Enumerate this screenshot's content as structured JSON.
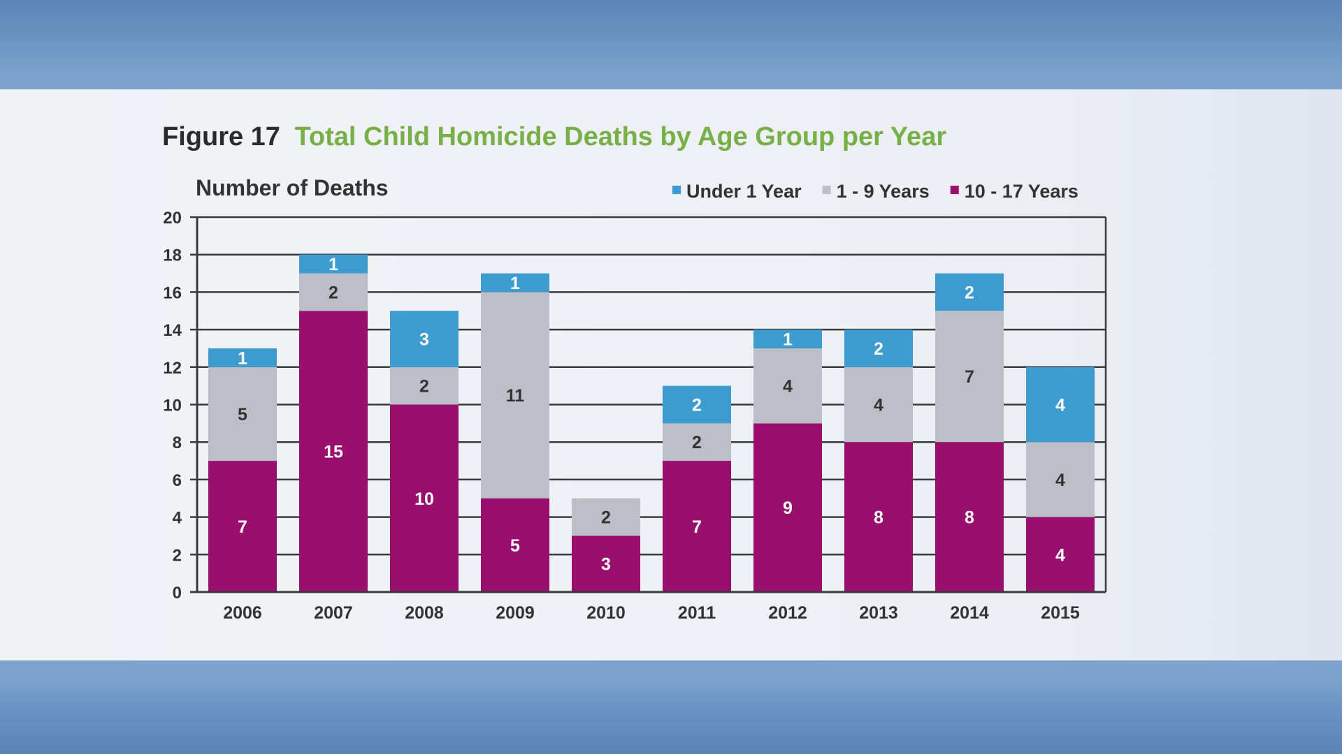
{
  "figure": {
    "number": "Figure 17",
    "title": "Total Child Homicide Deaths by Age Group per Year"
  },
  "chart_data": {
    "type": "bar",
    "stacked": true,
    "ylabel": "Number of Deaths",
    "xlabel": "",
    "ylim": [
      0,
      20
    ],
    "yticks": [
      0,
      2,
      4,
      6,
      8,
      10,
      12,
      14,
      16,
      18,
      20
    ],
    "grid": true,
    "legend_position": "top-right",
    "categories": [
      "2006",
      "2007",
      "2008",
      "2009",
      "2010",
      "2011",
      "2012",
      "2013",
      "2014",
      "2015"
    ],
    "series": [
      {
        "name": "10 - 17 Years",
        "color": "#990f6e",
        "label_color": "#ffffff",
        "values": [
          7,
          15,
          10,
          5,
          3,
          7,
          9,
          8,
          8,
          4
        ]
      },
      {
        "name": "1 - 9 Years",
        "color": "#bcbfc7",
        "label_color": "#333333",
        "values": [
          5,
          2,
          2,
          11,
          2,
          2,
          4,
          4,
          7,
          4
        ]
      },
      {
        "name": "Under 1 Year",
        "color": "#3d9bcf",
        "label_color": "#ffffff",
        "values": [
          1,
          1,
          3,
          1,
          0,
          2,
          1,
          2,
          2,
          4
        ]
      }
    ],
    "legend_order": [
      "Under 1 Year",
      "1 - 9 Years",
      "10 - 17 Years"
    ]
  }
}
